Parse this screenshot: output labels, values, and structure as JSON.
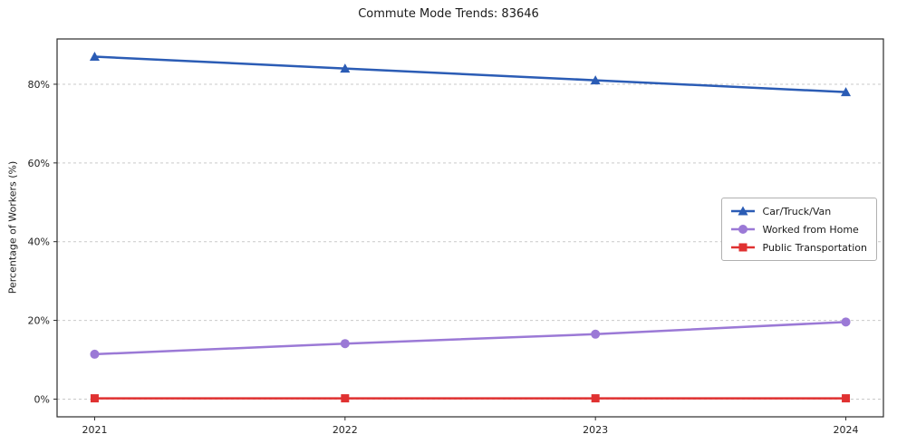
{
  "chart_data": {
    "type": "line",
    "title": "Commute Mode Trends: 83646",
    "xlabel": "",
    "ylabel": "Percentage of Workers (%)",
    "x": [
      2021,
      2022,
      2023,
      2024
    ],
    "xlim": [
      2020.85,
      2024.15
    ],
    "ylim": [
      -4.5,
      91.5
    ],
    "yticks": [
      0,
      20,
      40,
      60,
      80
    ],
    "ytick_labels": [
      "0%",
      "20%",
      "40%",
      "60%",
      "80%"
    ],
    "xtick_labels": [
      "2021",
      "2022",
      "2023",
      "2024"
    ],
    "grid": "horizontal-dashed",
    "legend_position": "center-right",
    "series": [
      {
        "name": "Car/Truck/Van",
        "color": "#2b5cb5",
        "marker": "triangle",
        "values": [
          87.0,
          84.0,
          81.0,
          78.0
        ]
      },
      {
        "name": "Worked from Home",
        "color": "#9b79d6",
        "marker": "circle",
        "values": [
          11.4,
          14.1,
          16.5,
          19.6
        ]
      },
      {
        "name": "Public Transportation",
        "color": "#e03131",
        "marker": "square",
        "values": [
          0.2,
          0.2,
          0.2,
          0.2
        ]
      }
    ]
  }
}
